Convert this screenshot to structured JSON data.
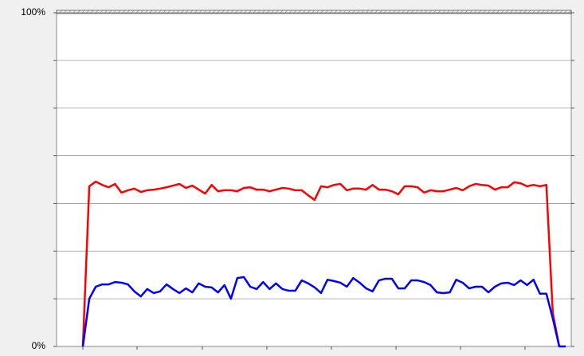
{
  "chart_data": {
    "type": "line",
    "ylim": [
      0,
      100
    ],
    "yticks": [
      {
        "value": 0,
        "label": "0%"
      },
      {
        "value": 14.2857,
        "label": null
      },
      {
        "value": 28.5714,
        "label": null
      },
      {
        "value": 42.8571,
        "label": null
      },
      {
        "value": 57.1429,
        "label": null
      },
      {
        "value": 71.4286,
        "label": null
      },
      {
        "value": 85.7143,
        "label": null
      },
      {
        "value": 100,
        "label": "100%"
      }
    ],
    "grid": true,
    "categories": [
      null,
      null,
      null,
      null,
      null,
      null,
      null,
      null,
      null,
      null,
      null,
      null,
      null,
      null,
      null,
      null,
      null,
      null,
      null,
      null,
      null,
      null,
      null,
      null,
      null,
      null,
      null,
      null,
      null,
      null,
      null,
      null,
      null,
      null,
      null,
      null,
      null,
      null,
      null,
      null,
      null,
      null,
      null,
      null,
      null,
      null,
      null,
      null,
      null,
      null,
      null,
      null,
      null,
      null,
      null,
      null,
      null,
      null,
      null,
      null,
      null,
      null,
      null,
      null,
      null,
      null,
      null,
      null,
      null,
      null,
      null,
      null,
      null,
      null,
      null,
      null
    ],
    "series": [
      {
        "color": "#ff0000",
        "values": [
          0,
          48.0,
          49.4,
          48.4,
          47.7,
          48.7,
          46.1,
          46.8,
          47.3,
          46.3,
          46.8,
          47.0,
          47.3,
          47.7,
          48.2,
          48.7,
          47.5,
          48.2,
          47.0,
          45.8,
          48.4,
          46.5,
          46.8,
          46.8,
          46.5,
          47.5,
          47.7,
          47.0,
          47.0,
          46.5,
          47.0,
          47.5,
          47.3,
          46.8,
          46.8,
          45.3,
          43.9,
          48.0,
          47.7,
          48.4,
          48.7,
          46.8,
          47.3,
          47.3,
          47.0,
          48.4,
          47.0,
          47.0,
          46.5,
          45.6,
          48.0,
          48.0,
          47.7,
          46.1,
          46.8,
          46.5,
          46.5,
          47.0,
          47.5,
          46.8,
          48.0,
          48.7,
          48.4,
          48.2,
          47.0,
          47.7,
          47.7,
          49.2,
          48.9,
          48.0,
          48.4,
          48.0,
          48.4,
          10.0,
          0,
          null
        ]
      },
      {
        "color": "#0000ff",
        "values": [
          0,
          14.3,
          17.9,
          18.6,
          18.6,
          19.3,
          19.1,
          18.6,
          16.5,
          15.0,
          17.2,
          16.0,
          16.5,
          18.6,
          17.2,
          16.0,
          17.4,
          16.2,
          18.9,
          17.9,
          17.7,
          16.2,
          18.4,
          14.3,
          20.5,
          20.8,
          17.9,
          17.2,
          19.3,
          17.2,
          18.9,
          17.2,
          16.7,
          16.7,
          19.8,
          18.9,
          17.7,
          16.0,
          20.0,
          19.6,
          19.1,
          17.9,
          20.5,
          19.1,
          17.4,
          16.5,
          19.8,
          20.3,
          20.3,
          17.4,
          17.4,
          19.8,
          19.8,
          19.3,
          18.4,
          16.2,
          16.0,
          16.2,
          20.0,
          19.1,
          17.4,
          17.9,
          17.9,
          16.2,
          17.9,
          18.9,
          19.1,
          18.4,
          19.8,
          18.4,
          20.0,
          15.8,
          15.8,
          8.4,
          0,
          0
        ]
      }
    ]
  }
}
